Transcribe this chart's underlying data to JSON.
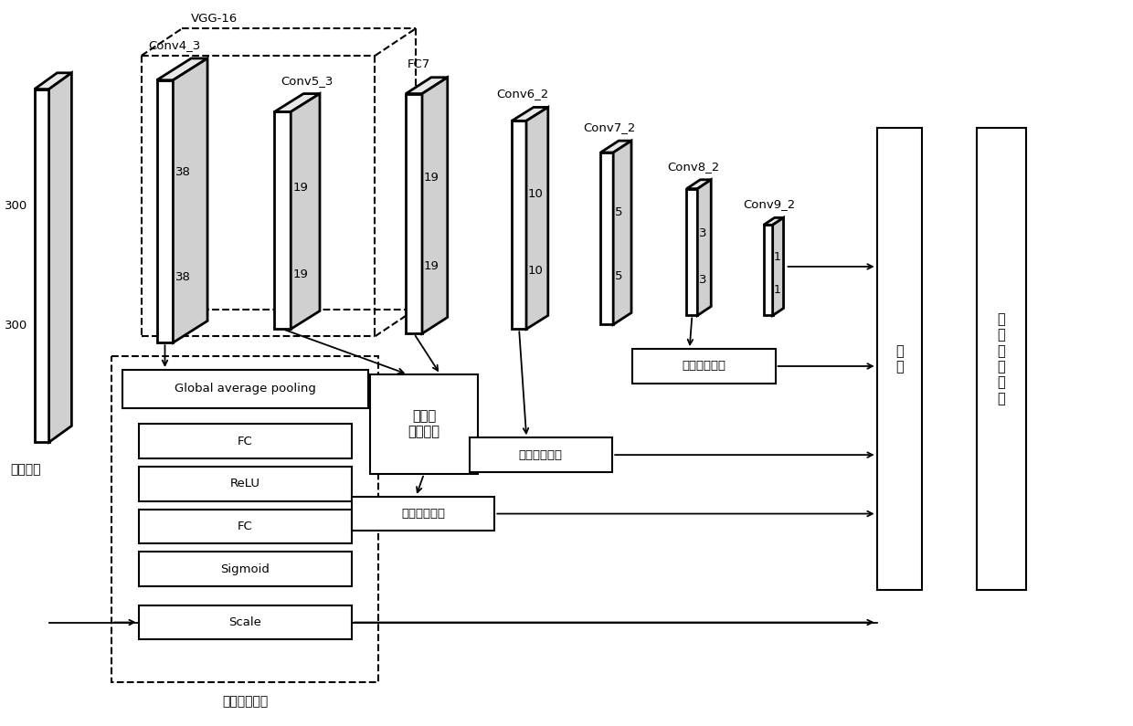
{
  "bg_color": "#ffffff",
  "black": "#000000",
  "input_label": "输入图像",
  "vgg_label": "VGG-16",
  "conv43_label": "Conv4_3",
  "conv53_label": "Conv5_3",
  "fc7_label": "FC7",
  "conv62_label": "Conv6_2",
  "conv72_label": "Conv7_2",
  "conv82_label": "Conv8_2",
  "conv92_label": "Conv9_2",
  "gap_label": "Global average pooling",
  "fc_label": "FC",
  "relu_label": "ReLU",
  "sigmoid_label": "Sigmoid",
  "scale_label": "Scale",
  "cam_label": "通道注意机制",
  "tfm_label": "特征图\n融合模块",
  "det_label": "检\n测",
  "nms_label": "非\n极\n大\n値\n抑\n制",
  "n300": "300",
  "n38": "38",
  "n19": "19",
  "n10": "10",
  "n5": "5",
  "n3": "3",
  "n1": "1"
}
